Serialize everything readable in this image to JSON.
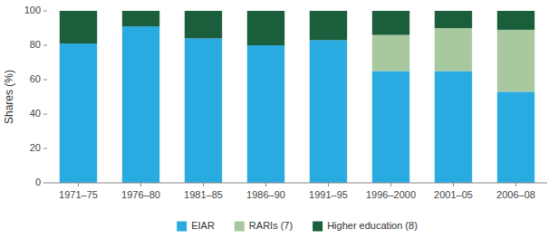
{
  "chart_data": {
    "type": "bar",
    "stacked": true,
    "categories": [
      "1971–75",
      "1976–80",
      "1981–85",
      "1986–90",
      "1991–95",
      "1996–2000",
      "2001–05",
      "2006–08"
    ],
    "series": [
      {
        "name": "EIAR",
        "color": "#29ABE2",
        "values": [
          81,
          91,
          84,
          80,
          83,
          65,
          65,
          53
        ]
      },
      {
        "name": "RARIs (7)",
        "color": "#A8C8A0",
        "values": [
          0,
          0,
          0,
          0,
          0,
          21,
          25,
          36
        ]
      },
      {
        "name": "Higher education (8)",
        "color": "#1B5E3B",
        "values": [
          19,
          9,
          16,
          20,
          17,
          14,
          10,
          11
        ]
      }
    ],
    "y_label": "Shares (%)",
    "ylim": [
      0,
      100
    ],
    "yticks": [
      0,
      20,
      40,
      60,
      80,
      100
    ],
    "grid": false,
    "legend": "lower center"
  }
}
